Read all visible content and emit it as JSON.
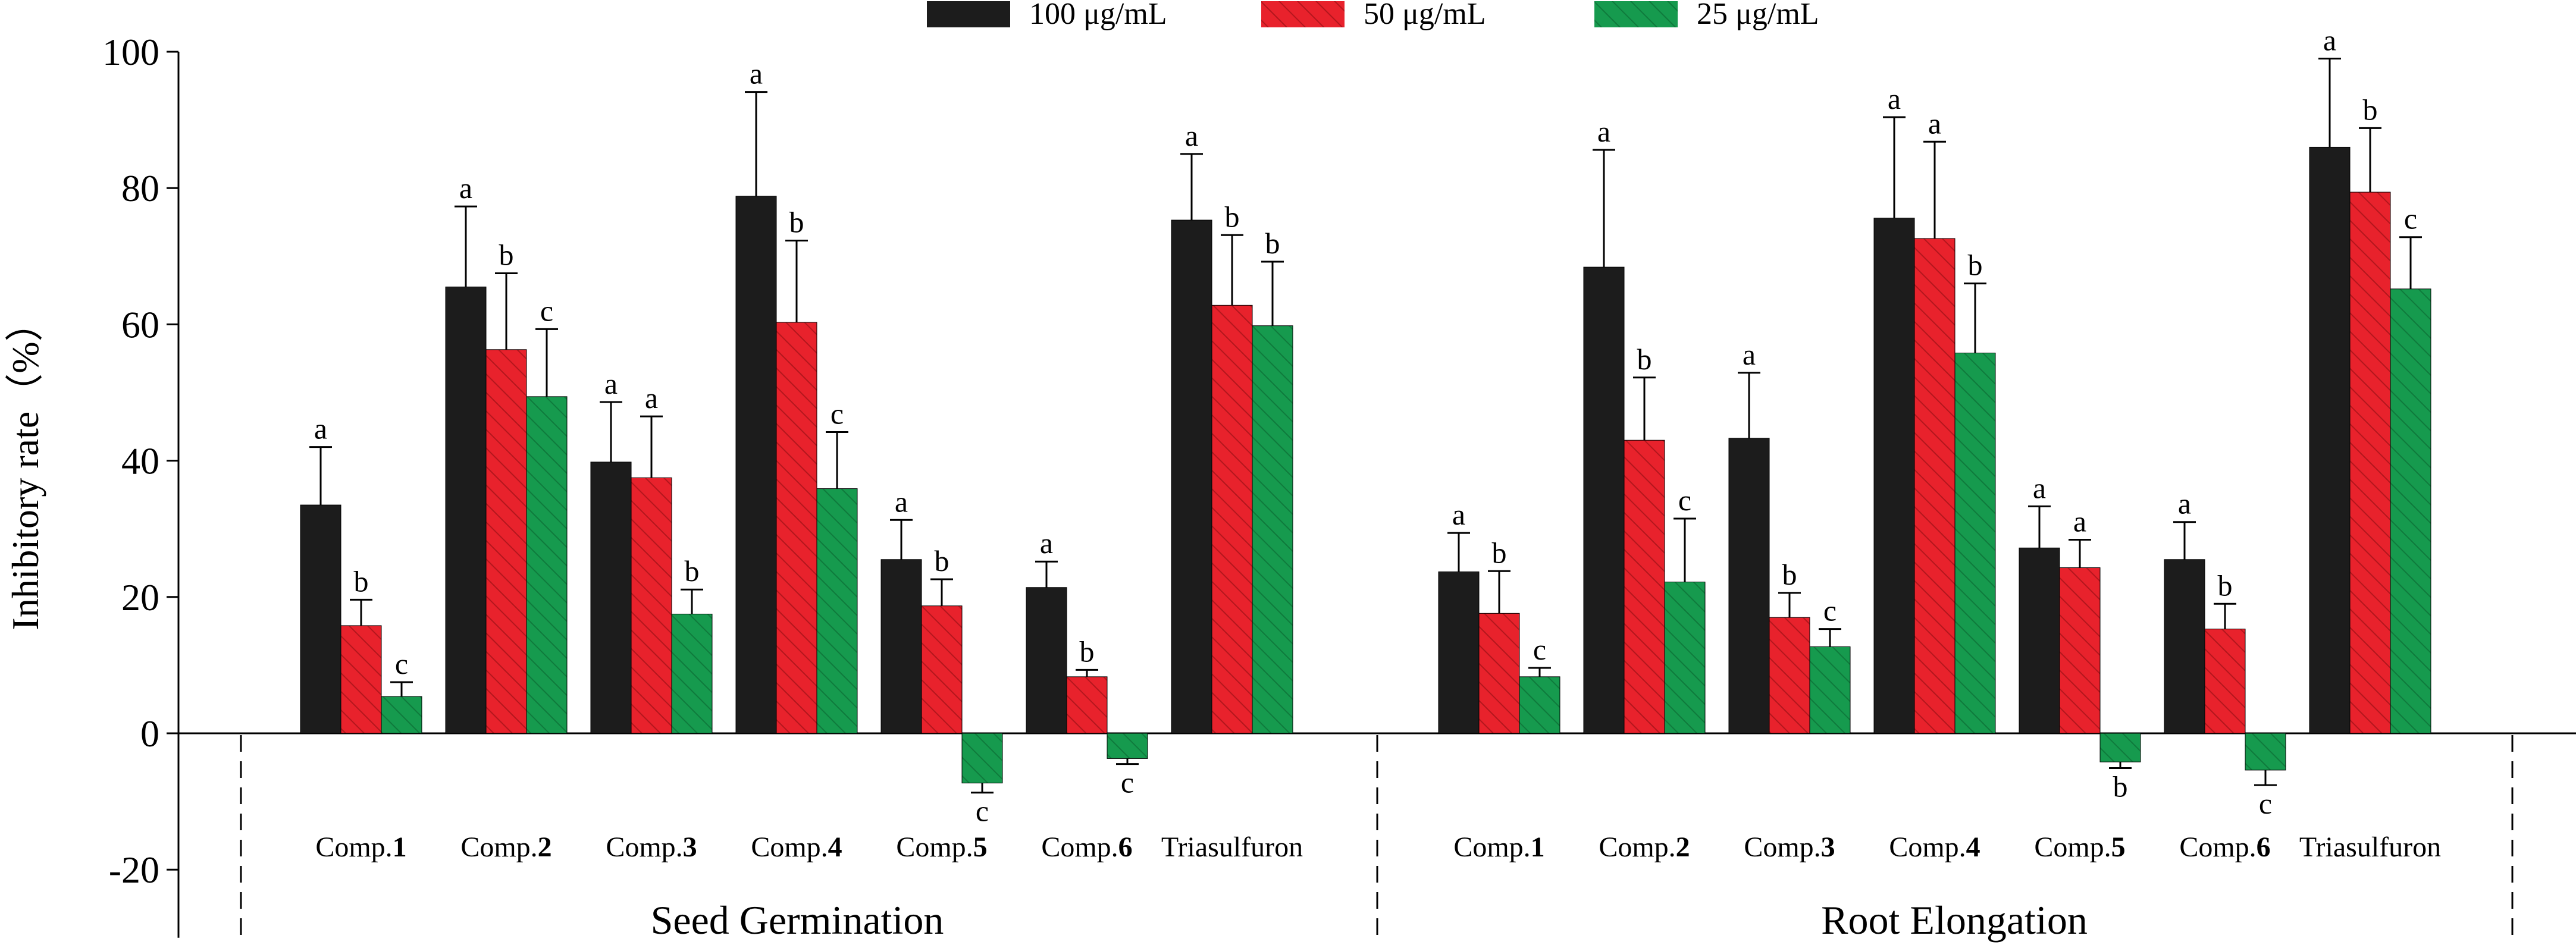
{
  "chart_data": {
    "type": "bar",
    "title": "",
    "xlabel": "",
    "ylabel": "Inhibitory rate（%）",
    "ylim": [
      -30,
      100
    ],
    "yticks": [
      100,
      80,
      60,
      40,
      20,
      0,
      -20
    ],
    "legend_position": "top-center",
    "colors": [
      "#1c1c1c",
      "#e8222c",
      "#169a4e"
    ],
    "hatch": [
      "none",
      "diagonal",
      "diagonal"
    ],
    "legend": [
      "100 μg/mL",
      "50 μg/mL",
      "25 μg/mL"
    ],
    "groups": [
      {
        "name": "Seed Germination",
        "categories": [
          {
            "prefix": "Comp.",
            "num": "1"
          },
          {
            "prefix": "Comp.",
            "num": "2"
          },
          {
            "prefix": "Comp.",
            "num": "3"
          },
          {
            "prefix": "Comp.",
            "num": "4"
          },
          {
            "prefix": "Comp.",
            "num": "5"
          },
          {
            "prefix": "Comp.",
            "num": "6"
          },
          {
            "prefix": "Triasulfuron",
            "num": ""
          }
        ],
        "series": [
          {
            "name": "100 μg/mL",
            "values": [
              33.5,
              65.5,
              39.8,
              78.8,
              25.5,
              21.4,
              75.3
            ],
            "errors": [
              8.5,
              11.8,
              8.8,
              15.3,
              5.8,
              3.8,
              9.7
            ],
            "letters": [
              "a",
              "a",
              "a",
              "a",
              "a",
              "a",
              "a"
            ]
          },
          {
            "name": "50 μg/mL",
            "values": [
              15.8,
              56.3,
              37.5,
              60.3,
              18.7,
              8.3,
              62.8
            ],
            "errors": [
              3.8,
              11.2,
              9.0,
              12.0,
              3.9,
              1.0,
              10.3
            ],
            "letters": [
              "b",
              "b",
              "a",
              "b",
              "b",
              "b",
              "b"
            ]
          },
          {
            "name": "25 μg/mL",
            "values": [
              5.4,
              49.4,
              17.5,
              35.9,
              -7.3,
              -3.7,
              59.8
            ],
            "errors": [
              2.1,
              9.9,
              3.6,
              8.3,
              1.4,
              0.8,
              9.4
            ],
            "letters": [
              "c",
              "c",
              "b",
              "c",
              "c",
              "c",
              "b"
            ]
          }
        ]
      },
      {
        "name": "Root Elongation",
        "categories": [
          {
            "prefix": "Comp.",
            "num": "1"
          },
          {
            "prefix": "Comp.",
            "num": "2"
          },
          {
            "prefix": "Comp.",
            "num": "3"
          },
          {
            "prefix": "Comp.",
            "num": "4"
          },
          {
            "prefix": "Comp.",
            "num": "5"
          },
          {
            "prefix": "Comp.",
            "num": "6"
          },
          {
            "prefix": "Triasulfuron",
            "num": ""
          }
        ],
        "series": [
          {
            "name": "100 μg/mL",
            "values": [
              23.7,
              68.4,
              43.3,
              75.6,
              27.2,
              25.5,
              86.0
            ],
            "errors": [
              5.7,
              17.2,
              9.6,
              14.8,
              6.1,
              5.5,
              13.0
            ],
            "letters": [
              "a",
              "a",
              "a",
              "a",
              "a",
              "a",
              "a"
            ]
          },
          {
            "name": "50 μg/mL",
            "values": [
              17.6,
              43.0,
              17.0,
              72.6,
              24.3,
              15.3,
              79.4
            ],
            "errors": [
              6.2,
              9.2,
              3.6,
              14.2,
              4.1,
              3.7,
              9.4
            ],
            "letters": [
              "b",
              "b",
              "b",
              "a",
              "a",
              "b",
              "b"
            ]
          },
          {
            "name": "25 μg/mL",
            "values": [
              8.3,
              22.2,
              12.7,
              55.8,
              -4.2,
              -5.4,
              65.2
            ],
            "errors": [
              1.3,
              9.3,
              2.6,
              10.2,
              0.9,
              2.2,
              7.6
            ],
            "letters": [
              "c",
              "c",
              "c",
              "b",
              "b",
              "c",
              "c"
            ]
          }
        ]
      }
    ]
  }
}
